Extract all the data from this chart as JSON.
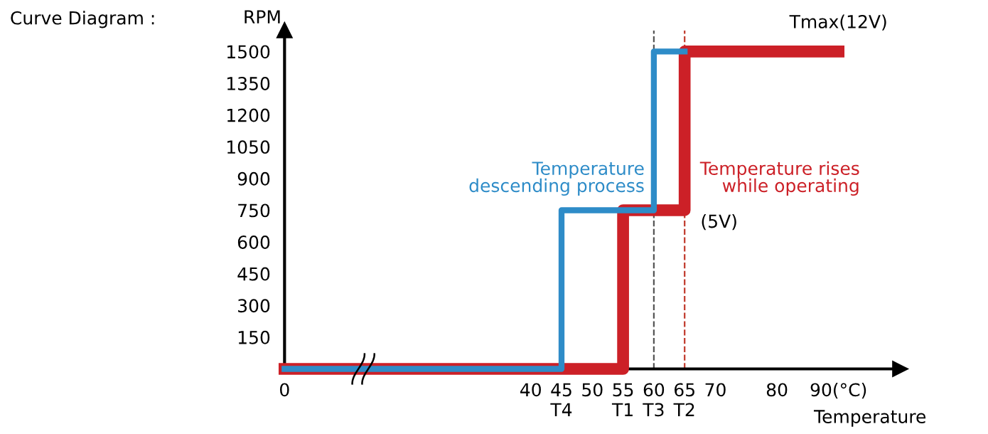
{
  "chart_data": {
    "type": "line",
    "title": "Curve Diagram :",
    "xlabel": "Temperature",
    "ylabel": "RPM",
    "series": [
      {
        "name": "Temperature rises\nwhile operating",
        "color": "#cc2027",
        "x": [
          0,
          55,
          55,
          65,
          65,
          90
        ],
        "values": [
          0,
          0,
          750,
          750,
          1500,
          1500
        ]
      },
      {
        "name": "Temperature\ndescending process",
        "color": "#2e8cc8",
        "x": [
          65,
          60,
          60,
          45,
          45,
          0
        ],
        "values": [
          1500,
          1500,
          750,
          750,
          0,
          0
        ]
      }
    ],
    "xlim": [
      0,
      100
    ],
    "ylim": [
      0,
      1600
    ],
    "xticks": [
      0,
      40,
      {
        "value": 45,
        "label": "45\nT4"
      },
      50,
      {
        "value": 55,
        "label": "55\nT1"
      },
      {
        "value": 60,
        "label": "60\nT3"
      },
      {
        "value": 65,
        "label": "65\nT2"
      },
      70,
      80,
      {
        "value": 90,
        "label": "90(°C)"
      }
    ],
    "yticks": [
      150,
      300,
      450,
      600,
      750,
      900,
      1050,
      1200,
      1350,
      1500
    ],
    "ref_lines": [
      {
        "axis": "x",
        "value": 60,
        "color": "#555555",
        "line_style": "dashed"
      },
      {
        "axis": "x",
        "value": 65,
        "color": "#c0392b",
        "line_style": "dashed"
      }
    ],
    "annotations": [
      {
        "text": "Tmax(12V)",
        "x": 90,
        "y": 1500
      },
      {
        "text": "(5V)",
        "x": 65,
        "y": 750
      }
    ],
    "grid": false,
    "legend": false,
    "marker": "none",
    "line_style": "solid"
  }
}
